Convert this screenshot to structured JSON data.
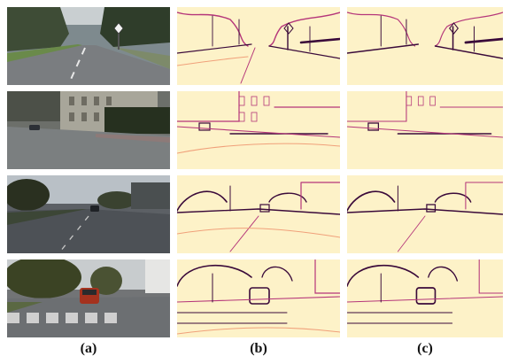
{
  "figure": {
    "columns": [
      {
        "caption": "(a)",
        "kind": "photo"
      },
      {
        "caption": "(b)",
        "kind": "edge-map"
      },
      {
        "caption": "(c)",
        "kind": "edge-map"
      }
    ],
    "rows": [
      {
        "scene": "road-with-sign"
      },
      {
        "scene": "building-street"
      },
      {
        "scene": "street-with-car"
      },
      {
        "scene": "crosswalk-red-car"
      }
    ],
    "colors": {
      "edge_background": "#fdf2c8",
      "edge_strong": "#3a0a3a",
      "edge_mid": "#b5367a",
      "edge_light": "#f0a07a"
    }
  }
}
